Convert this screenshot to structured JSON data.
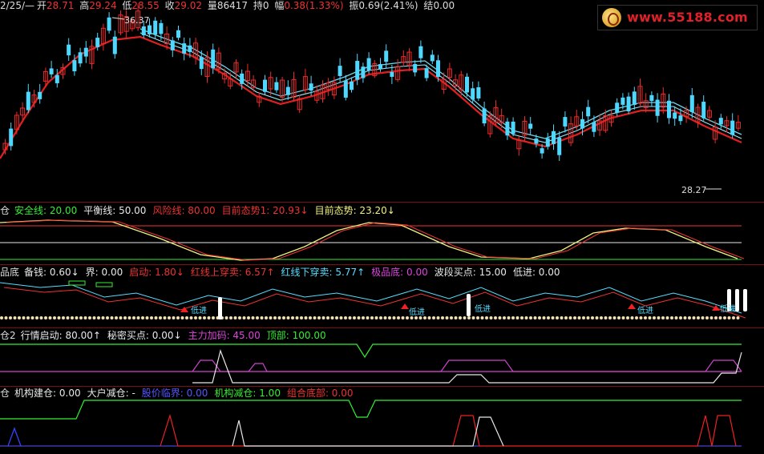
{
  "main_header": {
    "date_prefix": "2/25/—",
    "open_label": "开",
    "open_value": "28.71",
    "high_label": "高",
    "high_value": "29.24",
    "low_label": "低",
    "low_value": "28.55",
    "close_label": "收",
    "close_value": "29.02",
    "volume_label": "量",
    "volume_value": "86417",
    "hold_label": "持",
    "hold_value": "0",
    "range_label": "幅",
    "range_value": "0.38(1.33%)",
    "amp_label": "振",
    "amp_value": "0.69(2.41%)",
    "settle_label": "结",
    "settle_value": "0.00"
  },
  "price_annotations": {
    "high_mark": "36.37",
    "low_mark": "28.27"
  },
  "logo": {
    "text": "www.55188.com"
  },
  "panel2": {
    "name": "仓",
    "items": [
      {
        "label": "安全线: 20.00",
        "color": "#33ee33"
      },
      {
        "label": "平衡线: 50.00",
        "color": "#e8e8e8"
      },
      {
        "label": "风险线: 80.00",
        "color": "#ee3333"
      },
      {
        "label": "目前态势1: 20.93↓",
        "color": "#ee3333"
      },
      {
        "label": "目前态势: 23.20↓",
        "color": "#f0f080"
      }
    ]
  },
  "panel3": {
    "name": "品底",
    "items": [
      {
        "label": "备钱: 0.60↓",
        "color": "#e8e8e8"
      },
      {
        "label": "界: 0.00",
        "color": "#e8e8e8"
      },
      {
        "label": "启动: 1.80↓",
        "color": "#ee3333"
      },
      {
        "label": "红线上穿卖: 6.57↑",
        "color": "#ee3333"
      },
      {
        "label": "红线下穿卖: 5.77↑",
        "color": "#55ddff"
      },
      {
        "label": "极品底: 0.00",
        "color": "#dd44dd"
      },
      {
        "label": "波段买点: 15.00",
        "color": "#e8e8e8"
      },
      {
        "label": "低进: 0.00",
        "color": "#e8e8e8"
      }
    ],
    "marker_text": "低进"
  },
  "panel4": {
    "name": "仓2",
    "items": [
      {
        "label": "行情启动: 80.00↑",
        "color": "#e8e8e8"
      },
      {
        "label": "秘密买点: 0.00↓",
        "color": "#e8e8e8"
      },
      {
        "label": "主力加码: 45.00",
        "color": "#dd44dd"
      },
      {
        "label": "顶部: 100.00",
        "color": "#33ee33"
      }
    ]
  },
  "panel5": {
    "name": "仓",
    "items": [
      {
        "label": "机构建仓: 0.00",
        "color": "#e8e8e8"
      },
      {
        "label": "大户减仓: -",
        "color": "#e8e8e8"
      },
      {
        "label": "股价临界: 0.00",
        "color": "#5555ff"
      },
      {
        "label": "机构减仓: 1.00",
        "color": "#33ee33"
      },
      {
        "label": "组合底部: 0.00",
        "color": "#ee3333"
      }
    ]
  },
  "colors": {
    "up": "#ee2a2a",
    "down": "#4fd8ff",
    "ma_red": "#e02020",
    "ma_cyan": "#6fd8ee"
  }
}
